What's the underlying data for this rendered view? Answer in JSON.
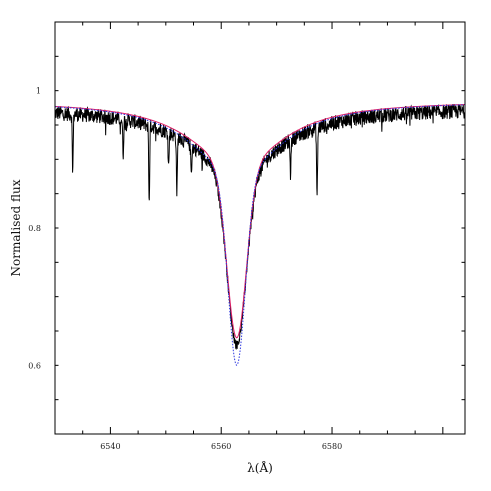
{
  "chart_data": {
    "type": "line",
    "title": "",
    "xlabel": "λ(Å)",
    "ylabel": "Normalised flux",
    "xlim": [
      6530,
      6604
    ],
    "ylim": [
      0.5,
      1.1
    ],
    "x_ticks": [
      6540,
      6560,
      6580
    ],
    "x_tick_labels": [
      "6540",
      "6560",
      "6580"
    ],
    "y_ticks": [
      0.6,
      0.8,
      1.0
    ],
    "y_tick_labels": [
      "0.6",
      "0.8",
      "1"
    ],
    "grid": false,
    "legend": "none",
    "line_center": 6562.8,
    "series": [
      {
        "style": "observed",
        "color": "#000000",
        "continuum": 0.975,
        "depth": 0.345,
        "core_width": 1.7,
        "wing_width": 9.5,
        "noise_amplitude": 0.011,
        "absorption_features": [
          {
            "x": 6533.2,
            "depth": 0.08
          },
          {
            "x": 6542.3,
            "depth": 0.05
          },
          {
            "x": 6547.0,
            "depth": 0.11
          },
          {
            "x": 6550.5,
            "depth": 0.05
          },
          {
            "x": 6552.0,
            "depth": 0.08
          },
          {
            "x": 6554.6,
            "depth": 0.04
          },
          {
            "x": 6572.5,
            "depth": 0.05
          },
          {
            "x": 6577.3,
            "depth": 0.1
          }
        ]
      },
      {
        "style": "model",
        "color": "#e0206a",
        "continuum": 0.985,
        "depth": 0.345,
        "core_width": 1.75,
        "wing_width": 9.8
      },
      {
        "style": "model-dotted",
        "color": "#2b36e0",
        "continuum": 0.985,
        "depth": 0.385,
        "core_width": 1.55,
        "wing_width": 9.6
      }
    ]
  }
}
